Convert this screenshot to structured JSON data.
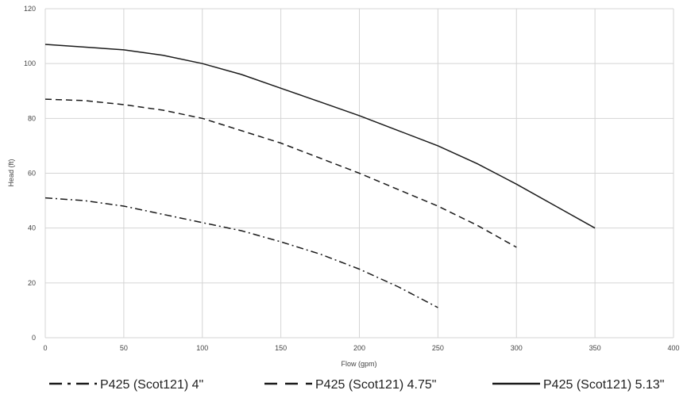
{
  "chart_data": {
    "type": "line",
    "title": "",
    "xlabel": "Flow (gpm)",
    "ylabel": "Head (ft)",
    "xlim": [
      0,
      400
    ],
    "ylim": [
      0,
      120
    ],
    "xticks": [
      0,
      50,
      100,
      150,
      200,
      250,
      300,
      350,
      400
    ],
    "yticks": [
      0,
      20,
      40,
      60,
      80,
      100,
      120
    ],
    "grid": true,
    "legend_position": "bottom",
    "series": [
      {
        "name": "P425 (Scot121) 4\"",
        "dash": "dash-dot",
        "color": "#1a1a1a",
        "x": [
          0,
          25,
          50,
          75,
          100,
          125,
          150,
          175,
          200,
          225,
          250
        ],
        "y": [
          51,
          50,
          48,
          45,
          42,
          39,
          35,
          30.5,
          25,
          18.5,
          11
        ]
      },
      {
        "name": "P425 (Scot121) 4.75\"",
        "dash": "dashed",
        "color": "#1a1a1a",
        "x": [
          0,
          25,
          50,
          75,
          100,
          125,
          150,
          175,
          200,
          225,
          250,
          275,
          300
        ],
        "y": [
          87,
          86.5,
          85,
          83,
          80,
          75.5,
          71,
          65.5,
          60,
          54,
          48,
          41,
          33
        ]
      },
      {
        "name": "P425 (Scot121) 5.13\"",
        "dash": "solid",
        "color": "#1a1a1a",
        "x": [
          0,
          25,
          50,
          75,
          100,
          125,
          150,
          175,
          200,
          225,
          250,
          275,
          300,
          325,
          350
        ],
        "y": [
          107,
          106,
          105,
          103,
          100,
          96,
          91,
          86,
          81,
          75.5,
          70,
          63.5,
          56,
          48,
          40
        ]
      }
    ]
  }
}
